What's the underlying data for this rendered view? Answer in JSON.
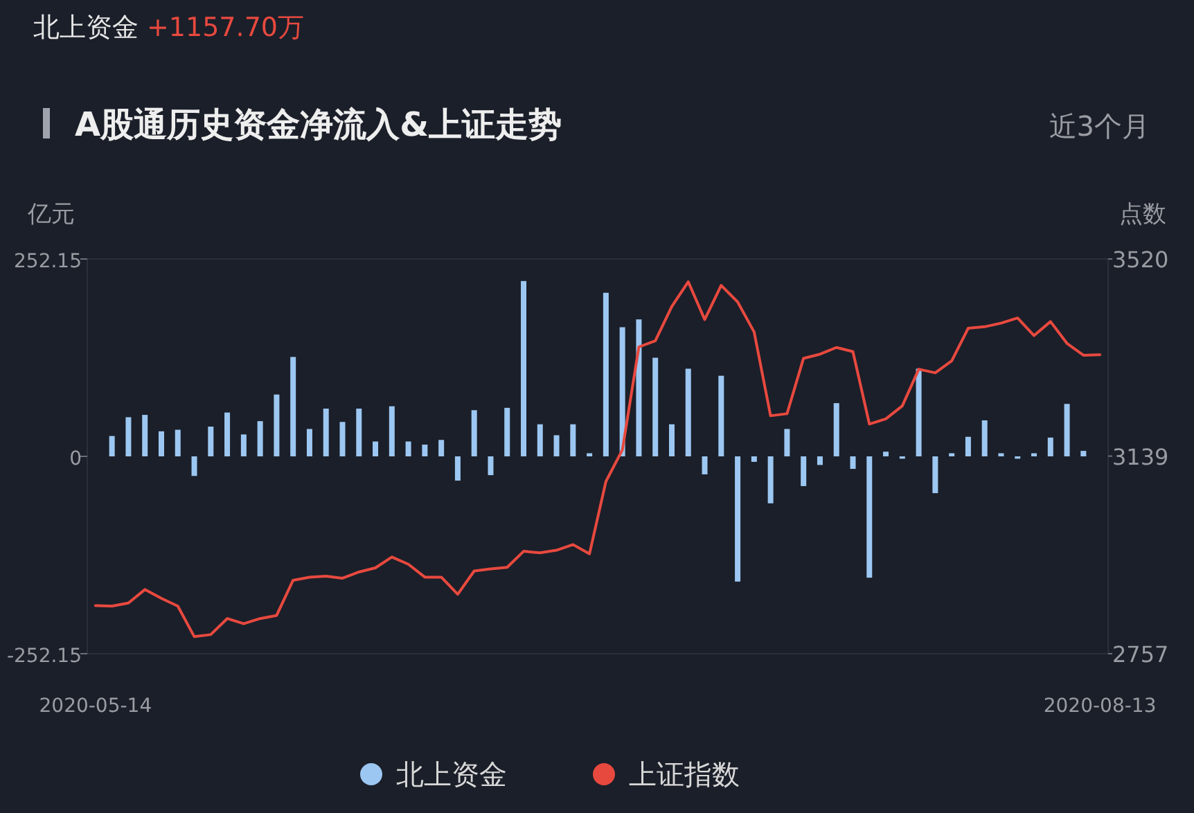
{
  "chart_data": {
    "type": "bar",
    "title": "A股通历史资金净流入&上证走势",
    "subtitle": "近3个月",
    "annotations": [
      "北上资金",
      "+1157.70万"
    ],
    "ylabel": "亿元",
    "y2label": "点数",
    "categories": [
      "2020-05-14",
      null,
      null,
      null,
      null,
      null,
      null,
      null,
      null,
      null,
      null,
      null,
      null,
      null,
      null,
      null,
      null,
      null,
      null,
      null,
      null,
      null,
      null,
      null,
      null,
      null,
      null,
      null,
      null,
      null,
      null,
      null,
      null,
      null,
      null,
      null,
      null,
      null,
      null,
      null,
      null,
      null,
      null,
      null,
      null,
      null,
      null,
      null,
      null,
      null,
      null,
      null,
      null,
      null,
      null,
      null,
      null,
      null,
      null,
      null,
      null,
      "2020-08-13"
    ],
    "ylim": [
      -252.15,
      252.15
    ],
    "yticks": [
      -252.15,
      0,
      252.15
    ],
    "y2lim": [
      2757,
      3520
    ],
    "y2ticks": [
      2757,
      3139,
      3520
    ],
    "grid": false,
    "legend": "bottom",
    "marker": "none",
    "line_style": "solid",
    "series": [
      {
        "name": "北上资金",
        "type": "bar",
        "axis": "y",
        "color": "#9cc7f2",
        "values": [
          null,
          26,
          50,
          53,
          32,
          34,
          -25,
          38,
          56,
          28,
          45,
          79,
          127,
          35,
          61,
          44,
          61,
          19,
          64,
          19,
          15,
          21,
          -31,
          59,
          -24,
          62,
          224,
          41,
          27,
          41,
          4,
          209,
          165,
          175,
          126,
          41,
          112,
          -23,
          103,
          -160,
          -7,
          -60,
          35,
          -38,
          -11,
          68,
          -16,
          -155,
          6,
          -3,
          112,
          -47,
          4,
          25,
          46,
          4,
          -3,
          4,
          24,
          67,
          7,
          null
        ]
      },
      {
        "name": "上证指数",
        "type": "line",
        "axis": "y2",
        "color": "#e8493f",
        "values": [
          2850,
          2849,
          2855,
          2881,
          2864,
          2849,
          2790,
          2794,
          2825,
          2815,
          2825,
          2831,
          2899,
          2905,
          2907,
          2903,
          2915,
          2923,
          2944,
          2930,
          2905,
          2905,
          2872,
          2917,
          2921,
          2924,
          2955,
          2952,
          2957,
          2968,
          2950,
          3090,
          3151,
          3350,
          3362,
          3428,
          3476,
          3403,
          3469,
          3437,
          3379,
          3217,
          3221,
          3328,
          3336,
          3349,
          3341,
          3201,
          3211,
          3236,
          3307,
          3300,
          3323,
          3386,
          3389,
          3396,
          3406,
          3372,
          3399,
          3357,
          3334,
          3335
        ]
      }
    ]
  }
}
